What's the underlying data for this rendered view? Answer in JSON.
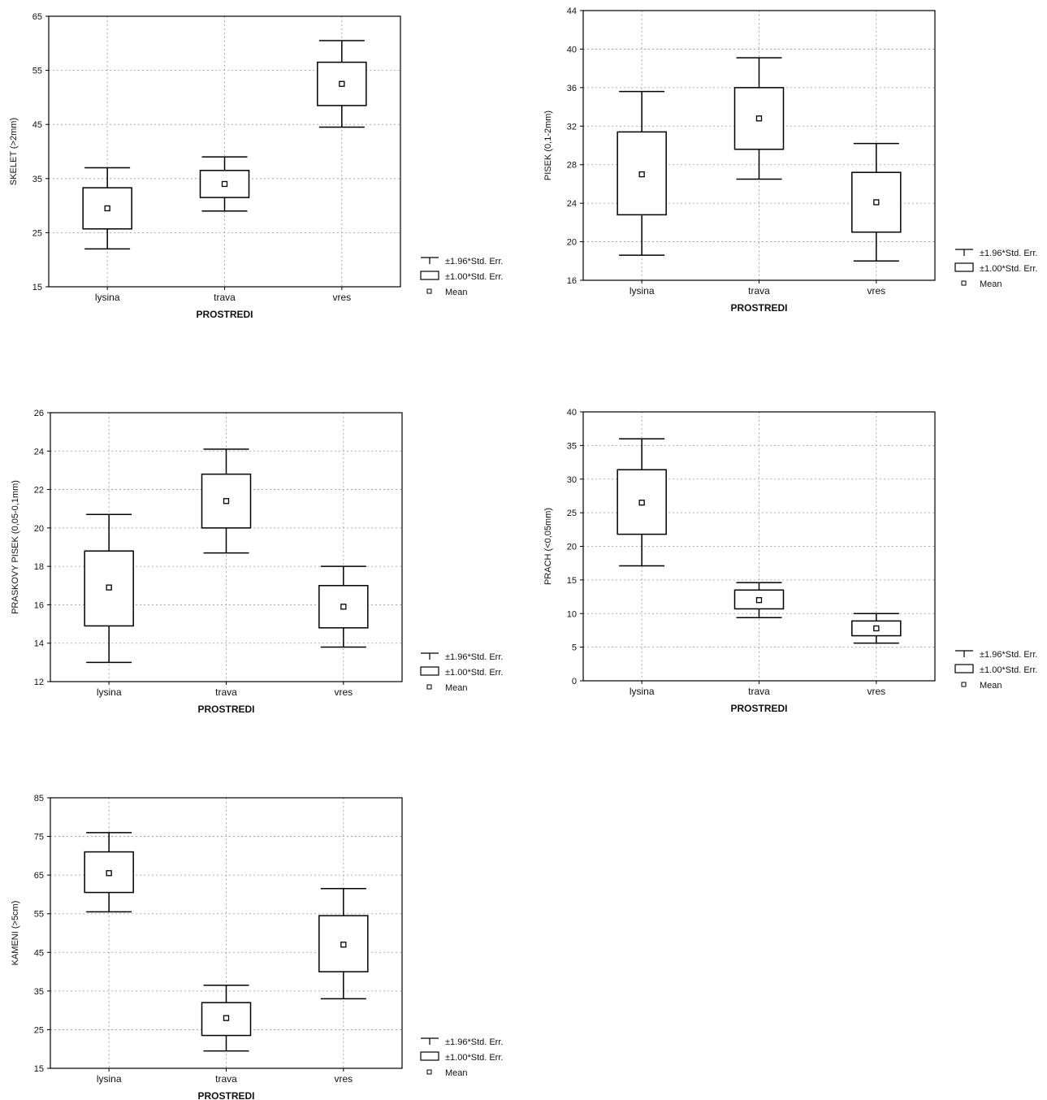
{
  "chart_data": [
    {
      "type": "box",
      "xlabel": "PROSTREDI",
      "ylabel": "SKELET (>2mm)",
      "ylim": [
        15,
        65
      ],
      "yticks": [
        15,
        25,
        35,
        45,
        55,
        65
      ],
      "grid": true,
      "legend_position": "right",
      "categories": [
        "lysina",
        "trava",
        "vres"
      ],
      "series": [
        {
          "category": "lysina",
          "mean": 29.5,
          "se_low": 25.7,
          "se_high": 33.3,
          "ci_low": 22,
          "ci_high": 37
        },
        {
          "category": "trava",
          "mean": 34,
          "se_low": 31.5,
          "se_high": 36.5,
          "ci_low": 29,
          "ci_high": 39
        },
        {
          "category": "vres",
          "mean": 52.5,
          "se_low": 48.5,
          "se_high": 56.5,
          "ci_low": 44.5,
          "ci_high": 60.5
        }
      ],
      "legend": [
        "±1.96*Std. Err.",
        "±1.00*Std. Err.",
        "Mean"
      ]
    },
    {
      "type": "box",
      "xlabel": "PROSTREDI",
      "ylabel": "PISEK (0,1-2mm)",
      "ylim": [
        16,
        44
      ],
      "yticks": [
        16,
        20,
        24,
        28,
        32,
        36,
        40,
        44
      ],
      "grid": true,
      "legend_position": "right",
      "categories": [
        "lysina",
        "trava",
        "vres"
      ],
      "series": [
        {
          "category": "lysina",
          "mean": 27,
          "se_low": 22.8,
          "se_high": 31.4,
          "ci_low": 18.6,
          "ci_high": 35.6
        },
        {
          "category": "trava",
          "mean": 32.8,
          "se_low": 29.6,
          "se_high": 36,
          "ci_low": 26.5,
          "ci_high": 39.1
        },
        {
          "category": "vres",
          "mean": 24.1,
          "se_low": 21,
          "se_high": 27.2,
          "ci_low": 18,
          "ci_high": 30.2
        }
      ],
      "legend": [
        "±1.96*Std. Err.",
        "±1.00*Std. Err.",
        "Mean"
      ]
    },
    {
      "type": "box",
      "xlabel": "PROSTREDI",
      "ylabel": "PRASKOVY PISEK (0,05-0,1mm)",
      "ylim": [
        12,
        26
      ],
      "yticks": [
        12,
        14,
        16,
        18,
        20,
        22,
        24,
        26
      ],
      "grid": true,
      "legend_position": "right",
      "categories": [
        "lysina",
        "trava",
        "vres"
      ],
      "series": [
        {
          "category": "lysina",
          "mean": 16.9,
          "se_low": 14.9,
          "se_high": 18.8,
          "ci_low": 13,
          "ci_high": 20.7
        },
        {
          "category": "trava",
          "mean": 21.4,
          "se_low": 20,
          "se_high": 22.8,
          "ci_low": 18.7,
          "ci_high": 24.1
        },
        {
          "category": "vres",
          "mean": 15.9,
          "se_low": 14.8,
          "se_high": 17,
          "ci_low": 13.8,
          "ci_high": 18
        }
      ],
      "legend": [
        "±1.96*Std. Err.",
        "±1.00*Std. Err.",
        "Mean"
      ]
    },
    {
      "type": "box",
      "xlabel": "PROSTREDI",
      "ylabel": "PRACH (<0,05mm)",
      "ylim": [
        0,
        40
      ],
      "yticks": [
        0,
        5,
        10,
        15,
        20,
        25,
        30,
        35,
        40
      ],
      "grid": true,
      "legend_position": "right",
      "categories": [
        "lysina",
        "trava",
        "vres"
      ],
      "series": [
        {
          "category": "lysina",
          "mean": 26.5,
          "se_low": 21.8,
          "se_high": 31.4,
          "ci_low": 17.1,
          "ci_high": 36
        },
        {
          "category": "trava",
          "mean": 12,
          "se_low": 10.7,
          "se_high": 13.5,
          "ci_low": 9.4,
          "ci_high": 14.6
        },
        {
          "category": "vres",
          "mean": 7.8,
          "se_low": 6.7,
          "se_high": 8.9,
          "ci_low": 5.6,
          "ci_high": 10
        }
      ],
      "legend": [
        "±1.96*Std. Err.",
        "±1.00*Std. Err.",
        "Mean"
      ]
    },
    {
      "type": "box",
      "xlabel": "PROSTREDI",
      "ylabel": "KAMENI (>5cm)",
      "ylim": [
        15,
        85
      ],
      "yticks": [
        15,
        25,
        35,
        45,
        55,
        65,
        75,
        85
      ],
      "grid": true,
      "legend_position": "right",
      "categories": [
        "lysina",
        "trava",
        "vres"
      ],
      "series": [
        {
          "category": "lysina",
          "mean": 65.5,
          "se_low": 60.5,
          "se_high": 71,
          "ci_low": 55.5,
          "ci_high": 76
        },
        {
          "category": "trava",
          "mean": 28,
          "se_low": 23.5,
          "se_high": 32,
          "ci_low": 19.5,
          "ci_high": 36.5
        },
        {
          "category": "vres",
          "mean": 47,
          "se_low": 40,
          "se_high": 54.5,
          "ci_low": 33,
          "ci_high": 61.5
        }
      ],
      "legend": [
        "±1.96*Std. Err.",
        "±1.00*Std. Err.",
        "Mean"
      ]
    }
  ]
}
